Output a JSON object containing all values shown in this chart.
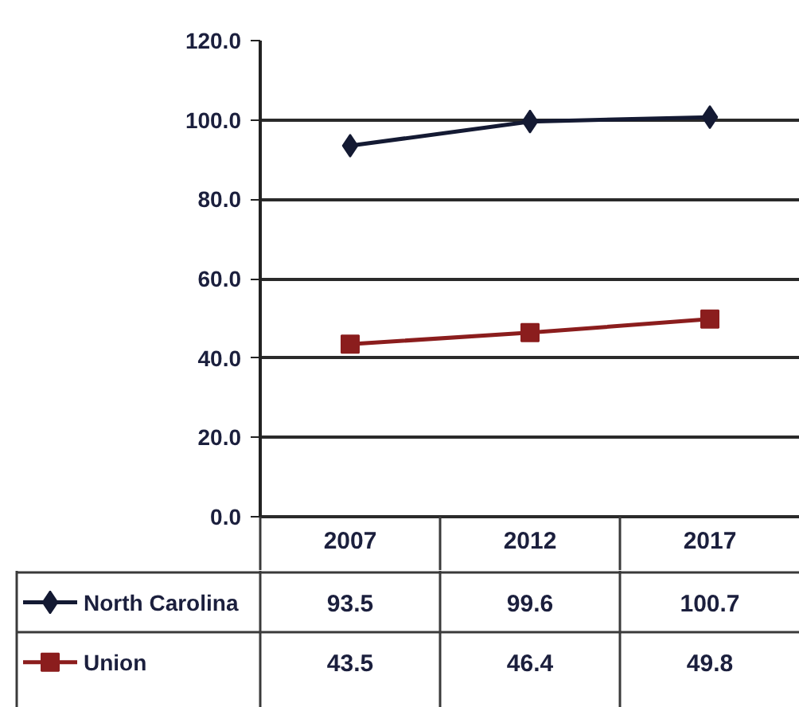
{
  "chart_data": {
    "type": "line",
    "categories": [
      "2007",
      "2012",
      "2017"
    ],
    "series": [
      {
        "name": "North Carolina",
        "color": "#141a33",
        "marker": "diamond",
        "values": [
          93.5,
          99.6,
          100.7
        ],
        "value_labels": [
          "93.5",
          "99.6",
          "100.7"
        ]
      },
      {
        "name": "Union",
        "color": "#8b1d1d",
        "marker": "square",
        "values": [
          43.5,
          46.4,
          49.8
        ],
        "value_labels": [
          "43.5",
          "46.4",
          "49.8"
        ]
      }
    ],
    "ylim": [
      0,
      120
    ],
    "yticks": [
      {
        "value": 0,
        "label": "0.0"
      },
      {
        "value": 20,
        "label": "20.0"
      },
      {
        "value": 40,
        "label": "40.0"
      },
      {
        "value": 60,
        "label": "60.0"
      },
      {
        "value": 80,
        "label": "80.0"
      },
      {
        "value": 100,
        "label": "100.0"
      },
      {
        "value": 120,
        "label": "120.0"
      }
    ],
    "grid": "y",
    "legend": "bottom",
    "line_style": "solid"
  }
}
